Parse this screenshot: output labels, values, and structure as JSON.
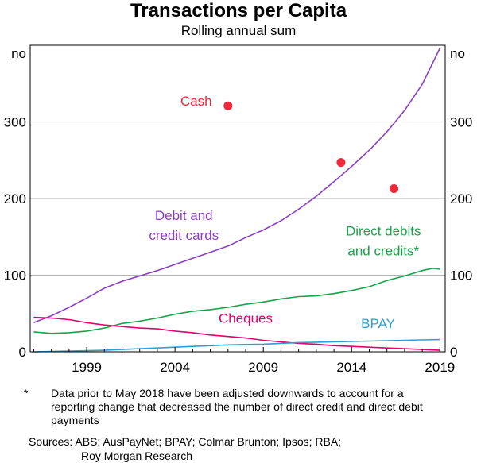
{
  "title": "Transactions per Capita",
  "subtitle": "Rolling annual sum",
  "footnote_marker": "*",
  "footnote": "Data prior to May 2018 have been adjusted downwards to account for a reporting change that decreased the number of direct credit and direct debit payments",
  "sources_line1": "Sources: ABS; AusPayNet; BPAY; Colmar Brunton; Ipsos; RBA;",
  "sources_line2": "Roy Morgan Research",
  "chart_data": {
    "type": "line",
    "title": "Transactions per Capita",
    "subtitle": "Rolling annual sum",
    "y_unit_label": "no",
    "xlim": [
      1995.8,
      2019.3
    ],
    "ylim": [
      0,
      400
    ],
    "x_ticks": [
      1999,
      2004,
      2009,
      2014,
      2019
    ],
    "y_ticks": [
      0,
      100,
      200,
      300
    ],
    "grid": true,
    "series": [
      {
        "name": "Debit and credit cards",
        "label_lines": [
          "Debit and",
          "credit cards"
        ],
        "label_anchor": [
          2004.5,
          172
        ],
        "color": "#8a3fc4",
        "x": [
          1996,
          1997,
          1998,
          1999,
          2000,
          2001,
          2002,
          2003,
          2004,
          2005,
          2006,
          2007,
          2008,
          2009,
          2010,
          2011,
          2012,
          2013,
          2014,
          2015,
          2016,
          2017,
          2018,
          2019
        ],
        "y": [
          38,
          47,
          58,
          70,
          83,
          92,
          99,
          106,
          114,
          122,
          130,
          138,
          149,
          159,
          171,
          186,
          203,
          222,
          242,
          263,
          287,
          315,
          349,
          396
        ]
      },
      {
        "name": "Direct debits and credits*",
        "label_lines": [
          "Direct debits",
          "and credits*"
        ],
        "label_anchor": [
          2015.8,
          152
        ],
        "color": "#1aa34a",
        "x": [
          1996,
          1997,
          1998,
          1999,
          2000,
          2001,
          2002,
          2003,
          2004,
          2005,
          2006,
          2007,
          2008,
          2009,
          2010,
          2011,
          2012,
          2013,
          2014,
          2015,
          2016,
          2017,
          2018,
          2018.6,
          2019
        ],
        "y": [
          26,
          24,
          25,
          27,
          31,
          37,
          40,
          44,
          49,
          53,
          55,
          58,
          62,
          65,
          69,
          72,
          73,
          76,
          80,
          85,
          93,
          99,
          106,
          109,
          108
        ]
      },
      {
        "name": "Cheques",
        "label_lines": [
          "Cheques"
        ],
        "label_anchor": [
          2008.0,
          38
        ],
        "color": "#e0006f",
        "x": [
          1996,
          1997,
          1998,
          1999,
          2000,
          2001,
          2002,
          2003,
          2004,
          2005,
          2006,
          2007,
          2008,
          2009,
          2010,
          2011,
          2012,
          2013,
          2014,
          2015,
          2016,
          2017,
          2018,
          2019
        ],
        "y": [
          45,
          44,
          42,
          38,
          35,
          33,
          31,
          30,
          27,
          25,
          22,
          20,
          18,
          15,
          13,
          11,
          10,
          8,
          7,
          6,
          5,
          4,
          3,
          2
        ]
      },
      {
        "name": "BPAY",
        "label_lines": [
          "BPAY"
        ],
        "label_anchor": [
          2015.5,
          31
        ],
        "color": "#2e9fd1",
        "x": [
          1996,
          1997,
          1998,
          1999,
          2000,
          2001,
          2002,
          2003,
          2004,
          2005,
          2006,
          2007,
          2008,
          2009,
          2010,
          2011,
          2012,
          2013,
          2014,
          2015,
          2016,
          2017,
          2018,
          2019
        ],
        "y": [
          0,
          0.5,
          1,
          1.5,
          2,
          3,
          4,
          5,
          6,
          7,
          8,
          9,
          9.5,
          10,
          11,
          12,
          12.5,
          13,
          13.5,
          14,
          14.5,
          15,
          15.5,
          16
        ]
      },
      {
        "name": "Cash",
        "type": "scatter",
        "label_lines": [
          "Cash"
        ],
        "label_anchor": [
          2005.2,
          321
        ],
        "color": "#f0283c",
        "x": [
          2007,
          2013.4,
          2016.4
        ],
        "y": [
          321,
          247,
          213
        ]
      }
    ]
  }
}
